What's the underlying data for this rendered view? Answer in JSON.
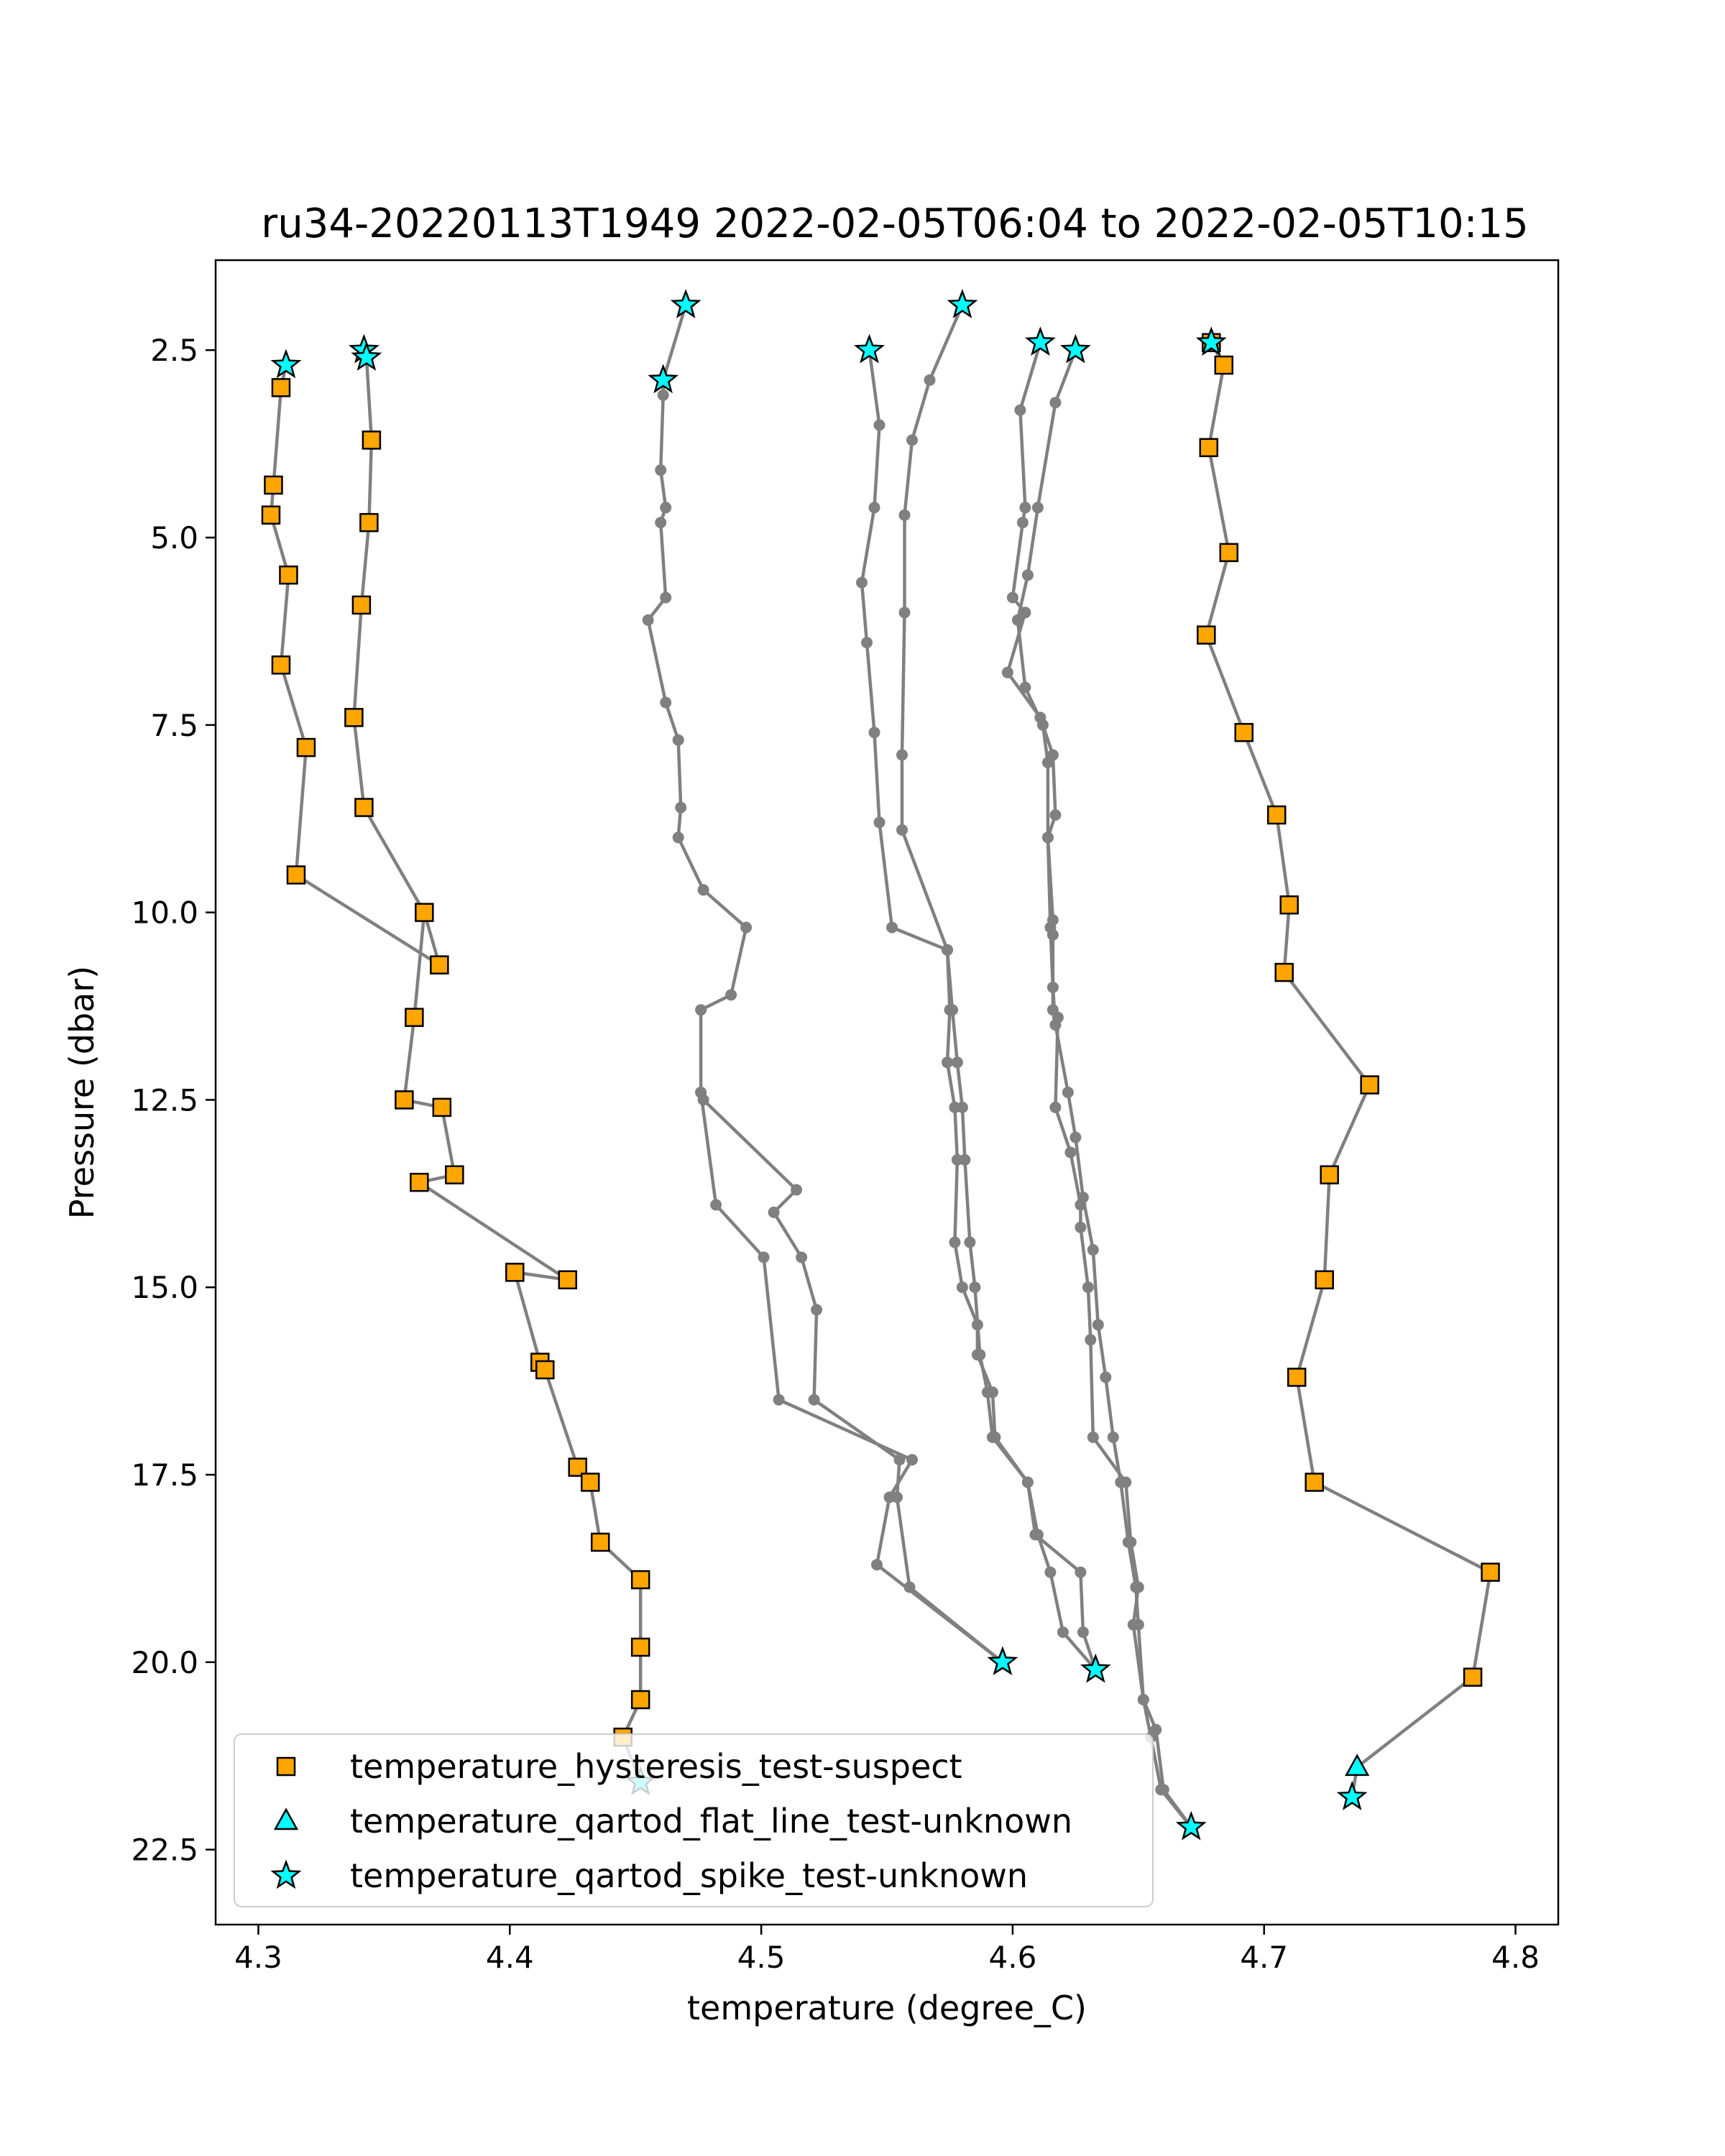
{
  "chart_data": {
    "type": "scatter",
    "title": "ru34-20220113T1949 2022-02-05T06:04 to 2022-02-05T10:15",
    "xlabel": "temperature (degree_C)",
    "ylabel": "Pressure (dbar)",
    "xlim": [
      4.283,
      4.817
    ],
    "ylim": [
      1.3,
      23.5
    ],
    "y_inverted": true,
    "x_ticks": [
      "4.3",
      "4.4",
      "4.5",
      "4.6",
      "4.7",
      "4.8"
    ],
    "y_ticks": [
      "2.5",
      "5.0",
      "7.5",
      "10.0",
      "12.5",
      "15.0",
      "17.5",
      "20.0",
      "22.5"
    ],
    "grid": false,
    "legend_position": "lower-left",
    "profile_style": {
      "color": "#808080",
      "marker": "circle"
    },
    "profiles": [
      [
        [
          4.311,
          2.7
        ],
        [
          4.309,
          3.0
        ],
        [
          4.306,
          4.3
        ],
        [
          4.305,
          4.7
        ],
        [
          4.312,
          5.5
        ],
        [
          4.309,
          6.7
        ],
        [
          4.319,
          7.8
        ],
        [
          4.315,
          9.5
        ],
        [
          4.372,
          10.7
        ],
        [
          4.366,
          10.0
        ],
        [
          4.362,
          11.4
        ],
        [
          4.358,
          12.5
        ],
        [
          4.373,
          12.6
        ],
        [
          4.378,
          13.5
        ],
        [
          4.364,
          13.6
        ],
        [
          4.423,
          14.9
        ],
        [
          4.402,
          14.8
        ],
        [
          4.412,
          16.0
        ],
        [
          4.414,
          16.1
        ],
        [
          4.427,
          17.4
        ],
        [
          4.432,
          17.6
        ],
        [
          4.436,
          18.4
        ],
        [
          4.452,
          18.9
        ],
        [
          4.452,
          19.8
        ],
        [
          4.452,
          20.5
        ],
        [
          4.445,
          21.0
        ],
        [
          4.452,
          21.6
        ]
      ],
      [
        [
          4.342,
          2.5
        ],
        [
          4.343,
          2.6
        ],
        [
          4.345,
          3.7
        ],
        [
          4.344,
          4.8
        ],
        [
          4.341,
          5.9
        ],
        [
          4.338,
          7.4
        ],
        [
          4.342,
          8.6
        ],
        [
          4.366,
          10.0
        ]
      ],
      [
        [
          4.47,
          1.9
        ],
        [
          4.461,
          2.9
        ],
        [
          4.461,
          3.1
        ],
        [
          4.46,
          4.1
        ],
        [
          4.462,
          4.6
        ],
        [
          4.46,
          4.8
        ],
        [
          4.462,
          5.8
        ],
        [
          4.455,
          6.1
        ],
        [
          4.462,
          7.2
        ],
        [
          4.467,
          7.7
        ],
        [
          4.468,
          8.6
        ],
        [
          4.467,
          9.0
        ],
        [
          4.477,
          9.7
        ],
        [
          4.494,
          10.2
        ],
        [
          4.488,
          11.1
        ],
        [
          4.476,
          11.3
        ],
        [
          4.476,
          12.4
        ],
        [
          4.477,
          12.5
        ],
        [
          4.514,
          13.7
        ],
        [
          4.505,
          14.0
        ],
        [
          4.516,
          14.6
        ],
        [
          4.522,
          15.3
        ],
        [
          4.521,
          16.5
        ],
        [
          4.555,
          17.3
        ],
        [
          4.554,
          17.8
        ],
        [
          4.559,
          19.0
        ],
        [
          4.596,
          20.0
        ]
      ],
      [
        [
          4.476,
          12.4
        ],
        [
          4.482,
          13.9
        ],
        [
          4.501,
          14.6
        ],
        [
          4.507,
          16.5
        ],
        [
          4.56,
          17.3
        ],
        [
          4.551,
          17.8
        ],
        [
          4.546,
          18.7
        ],
        [
          4.596,
          20.0
        ]
      ],
      [
        [
          4.543,
          2.5
        ],
        [
          4.547,
          3.5
        ],
        [
          4.545,
          4.6
        ],
        [
          4.54,
          5.6
        ],
        [
          4.542,
          6.4
        ],
        [
          4.545,
          7.6
        ],
        [
          4.547,
          8.8
        ],
        [
          4.552,
          10.2
        ],
        [
          4.574,
          10.5
        ],
        [
          4.575,
          11.3
        ],
        [
          4.574,
          12.0
        ],
        [
          4.577,
          12.6
        ],
        [
          4.578,
          13.3
        ],
        [
          4.577,
          14.4
        ],
        [
          4.58,
          15.0
        ],
        [
          4.586,
          15.5
        ],
        [
          4.586,
          15.9
        ],
        [
          4.592,
          16.4
        ],
        [
          4.593,
          17.0
        ],
        [
          4.606,
          17.6
        ],
        [
          4.609,
          18.3
        ],
        [
          4.627,
          18.8
        ],
        [
          4.628,
          19.6
        ],
        [
          4.633,
          20.1
        ]
      ],
      [
        [
          4.58,
          1.9
        ],
        [
          4.567,
          2.9
        ],
        [
          4.56,
          3.7
        ],
        [
          4.557,
          4.7
        ],
        [
          4.557,
          6.0
        ],
        [
          4.556,
          7.9
        ],
        [
          4.556,
          8.9
        ],
        [
          4.574,
          10.5
        ],
        [
          4.576,
          11.3
        ],
        [
          4.578,
          12.0
        ],
        [
          4.58,
          12.6
        ],
        [
          4.581,
          13.3
        ],
        [
          4.583,
          14.4
        ],
        [
          4.585,
          15.0
        ],
        [
          4.587,
          15.9
        ],
        [
          4.59,
          16.4
        ],
        [
          4.592,
          17.0
        ],
        [
          4.606,
          17.6
        ],
        [
          4.61,
          18.3
        ],
        [
          4.615,
          18.8
        ],
        [
          4.62,
          19.6
        ],
        [
          4.633,
          20.1
        ]
      ],
      [
        [
          4.611,
          2.4
        ],
        [
          4.603,
          3.3
        ],
        [
          4.605,
          4.6
        ],
        [
          4.604,
          4.8
        ],
        [
          4.6,
          5.8
        ],
        [
          4.605,
          6.0
        ],
        [
          4.598,
          6.8
        ],
        [
          4.611,
          7.4
        ],
        [
          4.616,
          7.9
        ],
        [
          4.617,
          8.7
        ],
        [
          4.614,
          9.0
        ],
        [
          4.616,
          10.1
        ],
        [
          4.616,
          10.3
        ],
        [
          4.616,
          11.3
        ],
        [
          4.618,
          11.4
        ],
        [
          4.617,
          12.6
        ],
        [
          4.623,
          13.2
        ],
        [
          4.627,
          13.9
        ],
        [
          4.627,
          14.2
        ],
        [
          4.63,
          15.0
        ],
        [
          4.631,
          15.7
        ],
        [
          4.632,
          17.0
        ],
        [
          4.645,
          17.6
        ],
        [
          4.647,
          18.4
        ],
        [
          4.65,
          19.0
        ],
        [
          4.648,
          19.5
        ],
        [
          4.652,
          20.5
        ],
        [
          4.657,
          20.9
        ],
        [
          4.66,
          21.7
        ],
        [
          4.671,
          22.2
        ]
      ],
      [
        [
          4.625,
          2.5
        ],
        [
          4.617,
          3.2
        ],
        [
          4.61,
          4.6
        ],
        [
          4.606,
          5.5
        ],
        [
          4.602,
          6.1
        ],
        [
          4.605,
          7.0
        ],
        [
          4.612,
          7.5
        ],
        [
          4.614,
          8.0
        ],
        [
          4.614,
          9.0
        ],
        [
          4.615,
          10.2
        ],
        [
          4.616,
          11.0
        ],
        [
          4.617,
          11.5
        ],
        [
          4.622,
          12.4
        ],
        [
          4.625,
          13.0
        ],
        [
          4.628,
          13.8
        ],
        [
          4.632,
          14.5
        ],
        [
          4.634,
          15.5
        ],
        [
          4.637,
          16.2
        ],
        [
          4.64,
          17.0
        ],
        [
          4.643,
          17.6
        ],
        [
          4.646,
          18.4
        ],
        [
          4.649,
          19.0
        ],
        [
          4.65,
          19.5
        ],
        [
          4.652,
          20.5
        ],
        [
          4.655,
          21.0
        ],
        [
          4.659,
          21.7
        ],
        [
          4.671,
          22.2
        ]
      ],
      [
        [
          4.679,
          2.4
        ],
        [
          4.684,
          2.7
        ],
        [
          4.678,
          3.8
        ],
        [
          4.686,
          5.2
        ],
        [
          4.677,
          6.3
        ],
        [
          4.692,
          7.6
        ],
        [
          4.705,
          8.7
        ],
        [
          4.71,
          9.9
        ],
        [
          4.708,
          10.8
        ],
        [
          4.742,
          12.3
        ],
        [
          4.726,
          13.5
        ],
        [
          4.724,
          14.9
        ],
        [
          4.713,
          16.2
        ],
        [
          4.72,
          17.6
        ],
        [
          4.79,
          18.8
        ],
        [
          4.783,
          20.2
        ],
        [
          4.737,
          21.4
        ],
        [
          4.735,
          21.8
        ]
      ]
    ],
    "series": [
      {
        "name": "temperature_hysteresis_test-suspect",
        "marker": "square",
        "color": "#FFA500",
        "points": [
          [
            4.679,
            2.4
          ],
          [
            4.684,
            2.7
          ],
          [
            4.678,
            3.8
          ],
          [
            4.686,
            5.2
          ],
          [
            4.677,
            6.3
          ],
          [
            4.692,
            7.6
          ],
          [
            4.705,
            8.7
          ],
          [
            4.71,
            9.9
          ],
          [
            4.708,
            10.8
          ],
          [
            4.742,
            12.3
          ],
          [
            4.726,
            13.5
          ],
          [
            4.724,
            14.9
          ],
          [
            4.713,
            16.2
          ],
          [
            4.72,
            17.6
          ],
          [
            4.79,
            18.8
          ],
          [
            4.783,
            20.2
          ],
          [
            4.309,
            3.0
          ],
          [
            4.306,
            4.3
          ],
          [
            4.305,
            4.7
          ],
          [
            4.312,
            5.5
          ],
          [
            4.309,
            6.7
          ],
          [
            4.319,
            7.8
          ],
          [
            4.315,
            9.5
          ],
          [
            4.366,
            10.0
          ],
          [
            4.372,
            10.7
          ],
          [
            4.362,
            11.4
          ],
          [
            4.358,
            12.5
          ],
          [
            4.373,
            12.6
          ],
          [
            4.378,
            13.5
          ],
          [
            4.364,
            13.6
          ],
          [
            4.402,
            14.8
          ],
          [
            4.423,
            14.9
          ],
          [
            4.412,
            16.0
          ],
          [
            4.414,
            16.1
          ],
          [
            4.427,
            17.4
          ],
          [
            4.432,
            17.6
          ],
          [
            4.436,
            18.4
          ],
          [
            4.452,
            18.9
          ],
          [
            4.452,
            19.8
          ],
          [
            4.452,
            20.5
          ],
          [
            4.445,
            21.0
          ],
          [
            4.345,
            3.7
          ],
          [
            4.344,
            4.8
          ],
          [
            4.341,
            5.9
          ],
          [
            4.338,
            7.4
          ],
          [
            4.342,
            8.6
          ]
        ]
      },
      {
        "name": "temperature_qartod_flat_line_test-unknown",
        "marker": "triangle",
        "color": "#00FFFF",
        "points": [
          [
            4.737,
            21.4
          ]
        ]
      },
      {
        "name": "temperature_qartod_spike_test-unknown",
        "marker": "star",
        "color": "#00FFFF",
        "points": [
          [
            4.311,
            2.7
          ],
          [
            4.342,
            2.5
          ],
          [
            4.343,
            2.6
          ],
          [
            4.461,
            2.9
          ],
          [
            4.47,
            1.9
          ],
          [
            4.543,
            2.5
          ],
          [
            4.58,
            1.9
          ],
          [
            4.611,
            2.4
          ],
          [
            4.625,
            2.5
          ],
          [
            4.679,
            2.4
          ],
          [
            4.596,
            20.0
          ],
          [
            4.633,
            20.1
          ],
          [
            4.671,
            22.2
          ],
          [
            4.735,
            21.8
          ],
          [
            4.452,
            21.6
          ]
        ]
      }
    ]
  }
}
